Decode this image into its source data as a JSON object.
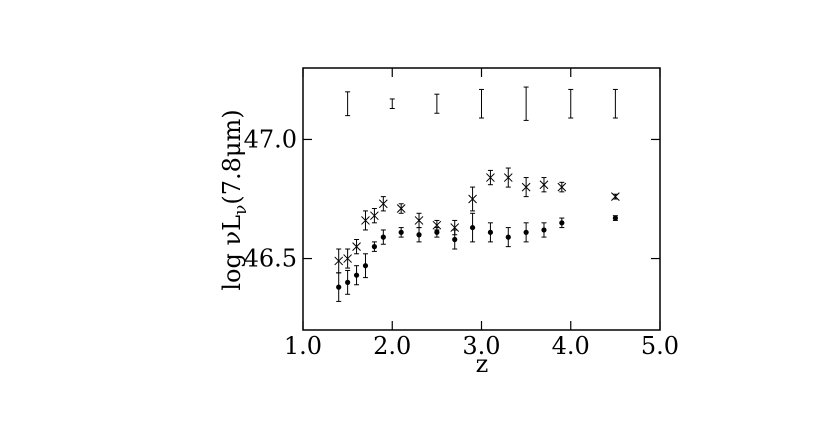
{
  "chart_data": {
    "type": "scatter",
    "xlabel": "z",
    "ylabel": [
      "log νL",
      "ν",
      "(7.8μm)"
    ],
    "xlim": [
      1,
      5
    ],
    "xticks": [
      {
        "value": 1,
        "label": "1.0"
      },
      {
        "value": 2,
        "label": "2.0"
      },
      {
        "value": 3,
        "label": "3.0"
      },
      {
        "value": 4,
        "label": "4.0"
      },
      {
        "value": 5,
        "label": "5.0"
      }
    ],
    "ylim": [
      46.2,
      47.3
    ],
    "yticks": [
      46.5,
      {
        "value": 47,
        "label": "47.0"
      }
    ],
    "color": "#000000",
    "series": [
      {
        "marker": "dot",
        "x": [
          1.4,
          1.5,
          1.6,
          1.7,
          1.8,
          1.9,
          2.1,
          2.3,
          2.5,
          2.7,
          2.9,
          3.1,
          3.3,
          3.5,
          3.7,
          3.9,
          4.5
        ],
        "values": [
          46.38,
          46.4,
          46.43,
          46.47,
          46.55,
          46.59,
          46.61,
          46.6,
          46.61,
          46.58,
          46.63,
          46.61,
          46.59,
          46.61,
          46.62,
          46.65,
          46.67
        ],
        "errors": [
          0.06,
          0.05,
          0.04,
          0.05,
          0.02,
          0.03,
          0.02,
          0.03,
          0.02,
          0.04,
          0.06,
          0.04,
          0.04,
          0.04,
          0.03,
          0.02,
          0.01
        ]
      },
      {
        "marker": "cross",
        "x": [
          1.4,
          1.5,
          1.6,
          1.7,
          1.8,
          1.9,
          2.1,
          2.3,
          2.5,
          2.7,
          2.9,
          3.1,
          3.3,
          3.5,
          3.7,
          3.9,
          4.5
        ],
        "values": [
          46.49,
          46.5,
          46.55,
          46.66,
          46.68,
          46.73,
          46.71,
          46.66,
          46.64,
          46.63,
          46.75,
          46.84,
          46.84,
          46.8,
          46.81,
          46.8,
          46.76
        ],
        "errors": [
          0.05,
          0.04,
          0.03,
          0.04,
          0.03,
          0.03,
          0.02,
          0.03,
          0.02,
          0.03,
          0.05,
          0.03,
          0.04,
          0.04,
          0.03,
          0.02,
          0.01
        ]
      },
      {
        "marker": "none",
        "x": [
          1.5,
          2.0,
          2.5,
          3.0,
          3.5,
          4.0,
          4.5
        ],
        "values": [
          47.15,
          47.15,
          47.15,
          47.15,
          47.15,
          47.15,
          47.15
        ],
        "errors": [
          0.05,
          0.02,
          0.04,
          0.06,
          0.07,
          0.06,
          0.06
        ]
      }
    ]
  }
}
